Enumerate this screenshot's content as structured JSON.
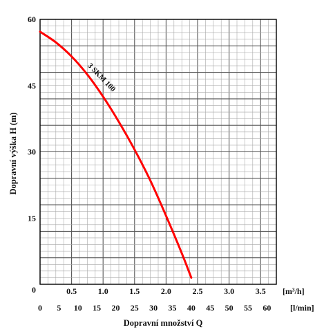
{
  "chart_data": {
    "type": "line",
    "ylabel": "Dopravní výška H (m)",
    "xlabel": "Dopravní množství Q",
    "x_m3h": {
      "unit_label": "[m³/h]",
      "ticks": [
        "0",
        "0.5",
        "1.0",
        "1.5",
        "2.0",
        "2.5",
        "3.0",
        "3.5"
      ],
      "range": [
        0,
        3.75
      ]
    },
    "x_lmin": {
      "unit_label": "[l/min]",
      "ticks": [
        "0",
        "5",
        "10",
        "15",
        "20",
        "25",
        "30",
        "35",
        "40",
        "45",
        "50",
        "55",
        "60"
      ],
      "range": [
        0,
        62.5
      ]
    },
    "y": {
      "ticks": [
        "15",
        "30",
        "45",
        "60"
      ],
      "range": [
        0,
        60
      ]
    },
    "grid": true,
    "series": [
      {
        "name": "3 SKM 100",
        "color": "#ff0000",
        "x_m3h": [
          0,
          0.25,
          0.5,
          0.75,
          1.0,
          1.25,
          1.5,
          1.75,
          2.0,
          2.25,
          2.4
        ],
        "y": [
          57.2,
          54.8,
          51.6,
          47.5,
          42.5,
          36.8,
          30.5,
          23.5,
          15.5,
          7.0,
          1.5
        ]
      }
    ]
  }
}
